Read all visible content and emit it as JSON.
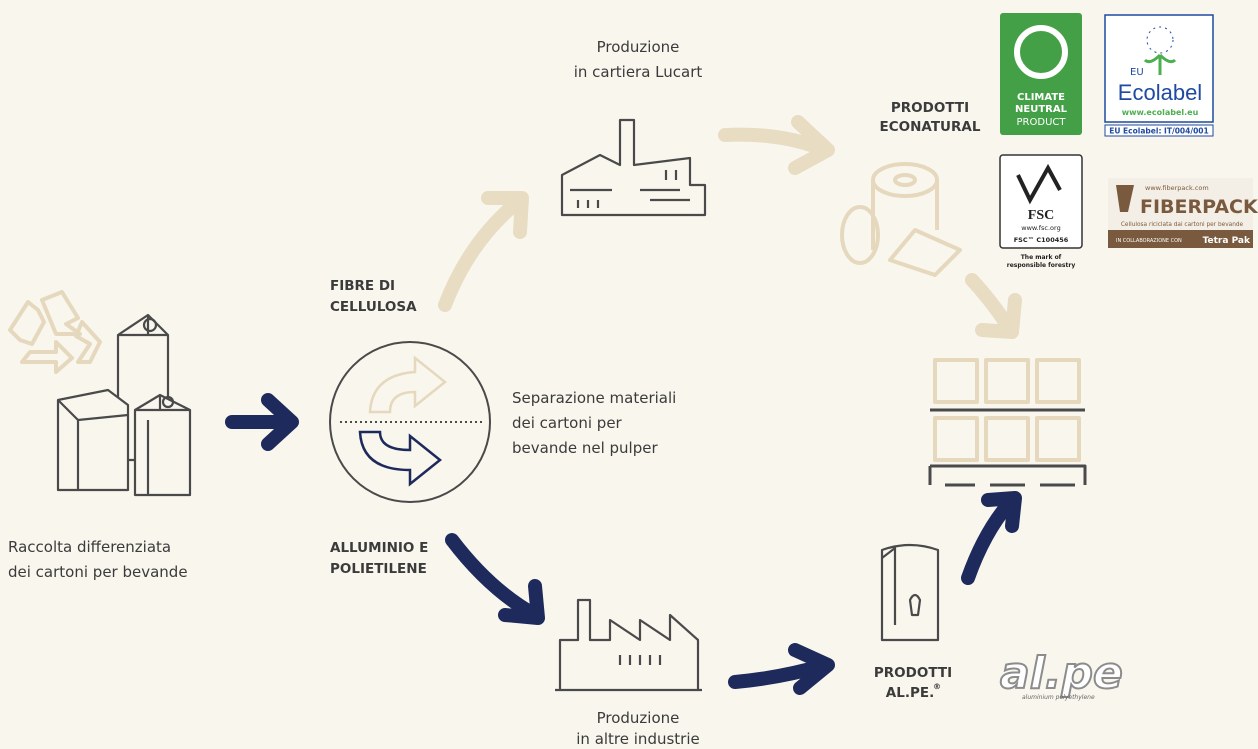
{
  "labels": {
    "collection": {
      "lines": [
        "Raccolta differenziata",
        "dei cartoni per bevande"
      ]
    },
    "fibre": {
      "lines": [
        "FIBRE DI",
        "CELLULOSA"
      ]
    },
    "aluminium": {
      "lines": [
        "ALLUMINIO E",
        "POLIETILENE"
      ]
    },
    "separation": {
      "lines": [
        "Separazione materiali",
        "dei cartoni per",
        "bevande nel pulper"
      ]
    },
    "paper_mill": {
      "lines": [
        "Produzione",
        "in cartiera Lucart"
      ]
    },
    "other_industries": {
      "lines": [
        "Produzione",
        "in altre industrie"
      ]
    },
    "econatural": {
      "lines": [
        "PRODOTTI",
        "ECONATURAL"
      ]
    },
    "alpe": {
      "lines": [
        "PRODOTTI",
        "AL.PE."
      ],
      "mark": "®"
    }
  },
  "logos": {
    "climate": {
      "lines": [
        "CLIMATE",
        "NEUTRAL",
        "PRODUCT"
      ]
    },
    "ecolabel": {
      "eu": "EU",
      "name": "Ecolabel",
      "url": "www.ecolabel.eu",
      "code": "EU Ecolabel: IT/004/001"
    },
    "fsc": {
      "name": "FSC",
      "url": "www.fsc.org",
      "code": "FSC™ C100456",
      "tagline": [
        "The mark of",
        "responsible forestry"
      ]
    },
    "fiberpack": {
      "url": "www.fiberpack.com",
      "name": "FIBERPACK",
      "subtitle": "Cellulosa riciclata dai cartoni per bevande",
      "partner": "IN COLLABORAZIONE CON",
      "partner_name": "Tetra Pak"
    },
    "alpe": {
      "name": "al.pe",
      "subtitle": "aluminium polyethylene"
    }
  }
}
